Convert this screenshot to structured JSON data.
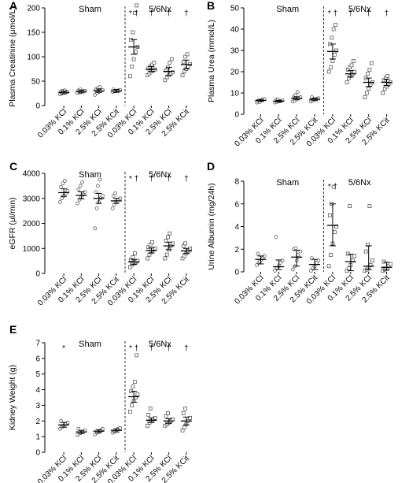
{
  "figure": {
    "width": 520,
    "height": 613
  },
  "chart_data": [
    {
      "panel": "A",
      "type": "scatter",
      "ylabel": "Plasma Creatinine (μmol/L)",
      "ylim": [
        0,
        200
      ],
      "yticks": [
        0,
        50,
        100,
        150,
        200
      ],
      "groups": [
        "Sham",
        "5/6Nx"
      ],
      "categories": [
        "0.03% KCl",
        "0.1% KCl",
        "2.5% KCl",
        "2.5% KCit",
        "0.03% KCl",
        "0.1% KCl",
        "2.5% KCl",
        "2.5% KCit"
      ],
      "marker_shape": [
        "circle",
        "circle",
        "circle",
        "circle",
        "square",
        "square",
        "square",
        "square"
      ],
      "marks": [
        "",
        "",
        "",
        "",
        "* †",
        "†",
        "†",
        "†"
      ],
      "mean": [
        27,
        29,
        30,
        30,
        120,
        74,
        70,
        84
      ],
      "error": [
        [
          24,
          30
        ],
        [
          26,
          32
        ],
        [
          27,
          34
        ],
        [
          27,
          33
        ],
        [
          105,
          135
        ],
        [
          70,
          80
        ],
        [
          62,
          78
        ],
        [
          75,
          93
        ]
      ],
      "points": [
        [
          23,
          25,
          26,
          27,
          28,
          29,
          30,
          31
        ],
        [
          26,
          27,
          28,
          29,
          30,
          31,
          33
        ],
        [
          22,
          26,
          28,
          30,
          32,
          34,
          36,
          38
        ],
        [
          28,
          29,
          30,
          31,
          32,
          33
        ],
        [
          60,
          80,
          95,
          110,
          120,
          135,
          150,
          190,
          205
        ],
        [
          62,
          66,
          70,
          72,
          74,
          76,
          80,
          84,
          88
        ],
        [
          52,
          58,
          62,
          65,
          68,
          72,
          78,
          88,
          95
        ],
        [
          62,
          70,
          75,
          80,
          85,
          90,
          100,
          105
        ]
      ]
    },
    {
      "panel": "B",
      "type": "scatter",
      "ylabel": "Plasma Urea (mmol/L)",
      "ylim": [
        0,
        50
      ],
      "yticks": [
        0,
        10,
        20,
        30,
        40,
        50
      ],
      "groups": [
        "Sham",
        "5/6Nx"
      ],
      "categories": [
        "0.03% KCl",
        "0.1% KCl",
        "2.5% KCl",
        "2.5% KCit",
        "0.03% KCl",
        "0.1% KCl",
        "2.5% KCl",
        "2.5% KCit"
      ],
      "marker_shape": [
        "circle",
        "circle",
        "circle",
        "circle",
        "square",
        "square",
        "square",
        "square"
      ],
      "marks": [
        "",
        "",
        "",
        "",
        "* †",
        "†",
        "†",
        "†"
      ],
      "mean": [
        6.5,
        6.2,
        7.5,
        7,
        29.5,
        19,
        15,
        15
      ],
      "error": [
        [
          6,
          7
        ],
        [
          5.8,
          6.6
        ],
        [
          6.8,
          8.2
        ],
        [
          6.4,
          7.6
        ],
        [
          26,
          33
        ],
        [
          17.5,
          20.5
        ],
        [
          13,
          17
        ],
        [
          13.5,
          16.5
        ]
      ],
      "points": [
        [
          5.5,
          6,
          6.5,
          7,
          7.2,
          6.2,
          5.8
        ],
        [
          5.5,
          5.8,
          6,
          6.2,
          6.5,
          6.8,
          7
        ],
        [
          6,
          6.5,
          7,
          7.5,
          8,
          8.5,
          9,
          10.5
        ],
        [
          6,
          6.5,
          7,
          7.2,
          7.5,
          8
        ],
        [
          20,
          22,
          25,
          28,
          30,
          33,
          36,
          40,
          42
        ],
        [
          15,
          17,
          18,
          19,
          20,
          21,
          22,
          23,
          25
        ],
        [
          8,
          10,
          12,
          14,
          15,
          17,
          19,
          21,
          24
        ],
        [
          10,
          12,
          13,
          14,
          15,
          16,
          17,
          18
        ]
      ]
    },
    {
      "panel": "C",
      "type": "scatter",
      "ylabel": "eGFR (μl/min)",
      "ylim": [
        0,
        4000
      ],
      "yticks": [
        0,
        1000,
        2000,
        3000,
        4000
      ],
      "groups": [
        "Sham",
        "5/6Nx"
      ],
      "categories": [
        "0.03% KCl",
        "0.1% KCl",
        "2.5% KCl",
        "2.5% KCit",
        "0.03% KCl",
        "0.1% KCl",
        "2.5% KCl",
        "2.5% KCit"
      ],
      "marker_shape": [
        "circle",
        "circle",
        "circle",
        "circle",
        "square",
        "square",
        "square",
        "square"
      ],
      "marks": [
        "",
        "",
        "",
        "",
        "* †",
        "†",
        "†",
        "†"
      ],
      "mean": [
        3230,
        3120,
        3000,
        2900,
        460,
        920,
        1100,
        900
      ],
      "error": [
        [
          3080,
          3380
        ],
        [
          2980,
          3260
        ],
        [
          2800,
          3200
        ],
        [
          2800,
          3000
        ],
        [
          360,
          560
        ],
        [
          820,
          1020
        ],
        [
          950,
          1250
        ],
        [
          800,
          1000
        ]
      ],
      "points": [
        [
          2850,
          3000,
          3100,
          3200,
          3300,
          3450,
          3600,
          3700
        ],
        [
          2800,
          2950,
          3050,
          3150,
          3250,
          3350,
          3500,
          3650
        ],
        [
          1800,
          2600,
          2850,
          3000,
          3100,
          3250,
          3500,
          3750
        ],
        [
          2600,
          2750,
          2850,
          2950,
          3000,
          3100,
          3200
        ],
        [
          250,
          350,
          400,
          450,
          500,
          550,
          650,
          800
        ],
        [
          600,
          750,
          850,
          950,
          1000,
          1050,
          1150,
          1250
        ],
        [
          600,
          750,
          950,
          1100,
          1200,
          1300,
          1450,
          1600
        ],
        [
          600,
          700,
          800,
          900,
          1000,
          1100,
          1200
        ]
      ]
    },
    {
      "panel": "D",
      "type": "scatter",
      "ylabel": "Urine Albumin (mg/24h)",
      "ylim": [
        0,
        8
      ],
      "yticks": [
        0,
        2,
        4,
        6,
        8
      ],
      "groups": [
        "Sham",
        "5/6Nx"
      ],
      "categories": [
        "0.03% KCl",
        "0.1% KCl",
        "2.5% KCl",
        "2.5% KCit",
        "0.03% KCl",
        "0.1% KCl",
        "2.5% KCl",
        "2.5% KCit"
      ],
      "marker_shape": [
        "circle",
        "circle",
        "circle",
        "circle",
        "square",
        "square",
        "square",
        "square"
      ],
      "marks": [
        "",
        "",
        "",
        "",
        "* †",
        "",
        "",
        ""
      ],
      "mean": [
        1.1,
        0.45,
        1.3,
        0.65,
        4.1,
        0.9,
        0.5,
        0.4
      ],
      "error": [
        [
          0.7,
          1.4
        ],
        [
          0.2,
          1.05
        ],
        [
          0.5,
          1.9
        ],
        [
          0.2,
          1.1
        ],
        [
          2.3,
          6.0
        ],
        [
          0.1,
          1.55
        ],
        [
          0.2,
          2.3
        ],
        [
          0.15,
          0.85
        ]
      ],
      "points": [
        [
          0.6,
          0.8,
          1.0,
          1.2,
          1.4,
          1.6,
          0.9
        ],
        [
          0.1,
          0.3,
          0.5,
          0.8,
          1.0,
          3.1
        ],
        [
          0.2,
          0.5,
          1.0,
          1.3,
          1.8,
          2.0,
          2.1,
          1.5
        ],
        [
          0.1,
          0.3,
          0.5,
          0.8,
          1.0,
          1.2
        ],
        [
          0.5,
          1.5,
          2.5,
          3.5,
          4.0,
          5.0,
          6.0,
          7.5
        ],
        [
          0.1,
          0.3,
          0.6,
          1.0,
          1.4,
          1.6,
          5.8
        ],
        [
          0.1,
          0.2,
          0.4,
          0.6,
          1.0,
          1.8,
          2.4,
          5.8
        ],
        [
          0.1,
          0.2,
          0.3,
          0.5,
          0.7,
          0.9
        ]
      ]
    },
    {
      "panel": "E",
      "type": "scatter",
      "ylabel": "Kidney Weight (g)",
      "ylim": [
        0,
        7
      ],
      "yticks": [
        0,
        1,
        2,
        3,
        4,
        5,
        6,
        7
      ],
      "groups": [
        "Sham",
        "5/6Nx"
      ],
      "categories": [
        "0.03% KCl",
        "0.1% KCl",
        "2.5% KCl",
        "2.5% KCit",
        "0.03% KCl",
        "0.1% KCl",
        "2.5% KCl",
        "2.5% KCit"
      ],
      "marker_shape": [
        "circle",
        "circle",
        "circle",
        "circle",
        "square",
        "square",
        "square",
        "square"
      ],
      "marks": [
        "*",
        "",
        "",
        "",
        "* †",
        "†",
        "†",
        "†"
      ],
      "mean": [
        1.75,
        1.3,
        1.35,
        1.4,
        3.55,
        2.05,
        2.0,
        2.0
      ],
      "error": [
        [
          1.6,
          1.9
        ],
        [
          1.2,
          1.4
        ],
        [
          1.25,
          1.45
        ],
        [
          1.3,
          1.5
        ],
        [
          3.2,
          3.9
        ],
        [
          1.9,
          2.2
        ],
        [
          1.85,
          2.15
        ],
        [
          1.75,
          2.25
        ]
      ],
      "points": [
        [
          1.5,
          1.6,
          1.7,
          1.8,
          1.9,
          2.0
        ],
        [
          1.1,
          1.2,
          1.25,
          1.3,
          1.4,
          1.5
        ],
        [
          1.15,
          1.25,
          1.3,
          1.4,
          1.5
        ],
        [
          1.25,
          1.3,
          1.4,
          1.5,
          1.55
        ],
        [
          2.6,
          3.0,
          3.3,
          3.5,
          3.7,
          3.9,
          4.2,
          4.5,
          6.2
        ],
        [
          1.7,
          1.9,
          2.0,
          2.1,
          2.2,
          2.4,
          2.8
        ],
        [
          1.7,
          1.8,
          1.9,
          2.0,
          2.1,
          2.3,
          2.5
        ],
        [
          1.4,
          1.6,
          1.8,
          2.0,
          2.2,
          2.5,
          2.8
        ]
      ]
    }
  ]
}
